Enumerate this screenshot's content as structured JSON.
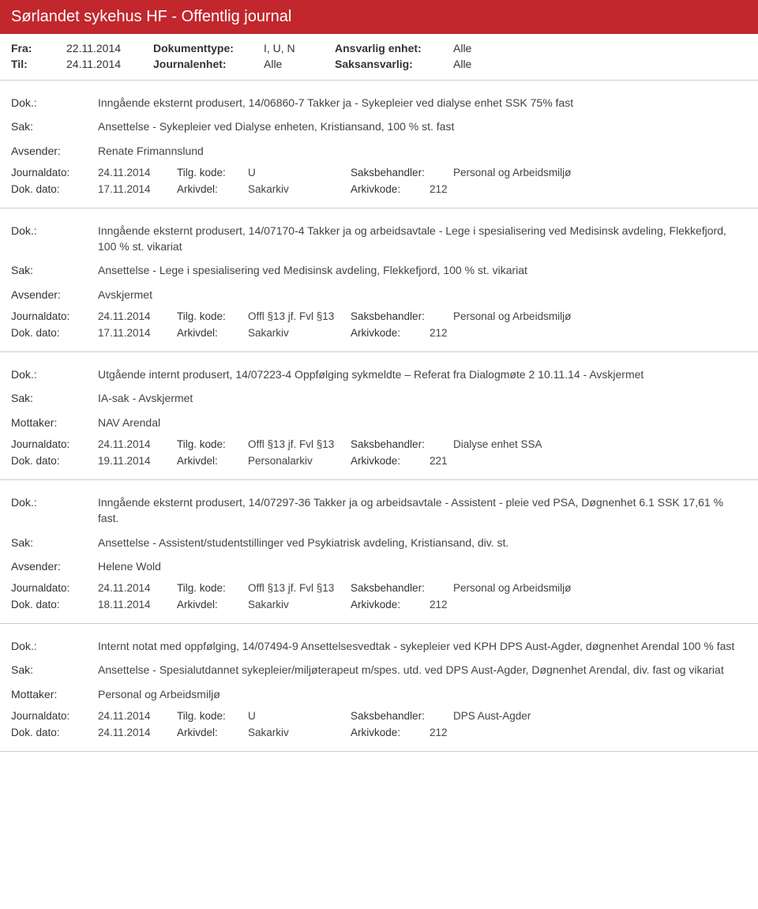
{
  "header": {
    "title": "Sørlandet sykehus HF - Offentlig journal"
  },
  "meta": {
    "fra_label": "Fra:",
    "fra": "22.11.2014",
    "til_label": "Til:",
    "til": "24.11.2014",
    "doktype_label": "Dokumenttype:",
    "doktype": "I, U, N",
    "journalenhet_label": "Journalenhet:",
    "journalenhet": "Alle",
    "ansvenhet_label": "Ansvarlig enhet:",
    "ansvenhet": "Alle",
    "saksansv_label": "Saksansvarlig:",
    "saksansv": "Alle"
  },
  "labels": {
    "dok": "Dok.:",
    "sak": "Sak:",
    "avsender": "Avsender:",
    "mottaker": "Mottaker:",
    "journaldato": "Journaldato:",
    "tilgkode": "Tilg. kode:",
    "saksbehandler": "Saksbehandler:",
    "dokdato": "Dok. dato:",
    "arkivdel": "Arkivdel:",
    "arkivkode": "Arkivkode:"
  },
  "entries": [
    {
      "dok": "Inngående eksternt produsert, 14/06860-7 Takker ja - Sykepleier ved dialyse enhet SSK 75% fast",
      "sak": "Ansettelse - Sykepleier ved Dialyse enheten, Kristiansand, 100 % st. fast",
      "party_label": "Avsender:",
      "party": "Renate Frimannslund",
      "journaldato": "24.11.2014",
      "tilgkode": "U",
      "saksbehandler": "Personal og Arbeidsmiljø",
      "dokdato": "17.11.2014",
      "arkivdel": "Sakarkiv",
      "arkivkode": "212"
    },
    {
      "dok": "Inngående eksternt produsert, 14/07170-4 Takker ja og arbeidsavtale - Lege i spesialisering ved Medisinsk avdeling, Flekkefjord, 100 % st. vikariat",
      "sak": "Ansettelse - Lege i spesialisering ved Medisinsk avdeling, Flekkefjord, 100 % st. vikariat",
      "party_label": "Avsender:",
      "party": "Avskjermet",
      "journaldato": "24.11.2014",
      "tilgkode": "Offl §13 jf. Fvl §13",
      "saksbehandler": "Personal og Arbeidsmiljø",
      "dokdato": "17.11.2014",
      "arkivdel": "Sakarkiv",
      "arkivkode": "212"
    },
    {
      "dok": "Utgående internt produsert, 14/07223-4 Oppfølging sykmeldte – Referat fra Dialogmøte 2 10.11.14 - Avskjermet",
      "sak": "IA-sak - Avskjermet",
      "party_label": "Mottaker:",
      "party": "NAV Arendal",
      "journaldato": "24.11.2014",
      "tilgkode": "Offl §13 jf. Fvl §13",
      "saksbehandler": "Dialyse enhet SSA",
      "dokdato": "19.11.2014",
      "arkivdel": "Personalarkiv",
      "arkivkode": "221"
    },
    {
      "dok": "Inngående eksternt produsert, 14/07297-36 Takker ja og arbeidsavtale - Assistent - pleie ved PSA, Døgnenhet 6.1 SSK 17,61 % fast.",
      "sak": "Ansettelse - Assistent/studentstillinger ved Psykiatrisk avdeling, Kristiansand, div. st.",
      "party_label": "Avsender:",
      "party": "Helene Wold",
      "journaldato": "24.11.2014",
      "tilgkode": "Offl §13 jf. Fvl §13",
      "saksbehandler": "Personal og Arbeidsmiljø",
      "dokdato": "18.11.2014",
      "arkivdel": "Sakarkiv",
      "arkivkode": "212"
    },
    {
      "dok": "Internt notat med oppfølging, 14/07494-9 Ansettelsesvedtak - sykepleier ved KPH DPS Aust-Agder, døgnenhet Arendal 100 % fast",
      "sak": "Ansettelse - Spesialutdannet sykepleier/miljøterapeut m/spes. utd. ved DPS Aust-Agder, Døgnenhet Arendal, div. fast og vikariat",
      "party_label": "Mottaker:",
      "party": "Personal og Arbeidsmiljø",
      "journaldato": "24.11.2014",
      "tilgkode": "U",
      "saksbehandler": "DPS Aust-Agder",
      "dokdato": "24.11.2014",
      "arkivdel": "Sakarkiv",
      "arkivkode": "212"
    }
  ]
}
